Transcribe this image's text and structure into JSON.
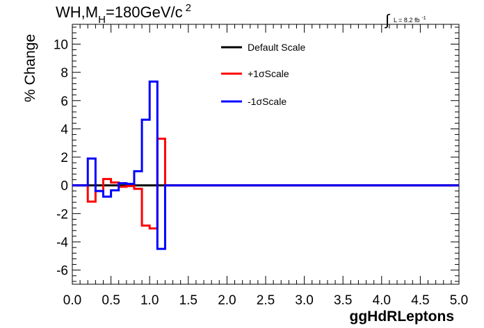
{
  "chart_data": {
    "type": "line",
    "title": "WH,M_H=180GeV/c^2",
    "title_parts": {
      "main": "WH,M",
      "sub": "H",
      "rest": "=180GeV/c",
      "sup": "2"
    },
    "lumi_label": {
      "integral": "∫",
      "text": "L = 8.2 fb",
      "sup": "-1"
    },
    "xlabel": "ggHdRLeptons",
    "ylabel": "% Change",
    "xlim": [
      0.0,
      5.0
    ],
    "ylim": [
      -7.0,
      11.4
    ],
    "x_ticks": [
      0.0,
      0.5,
      1.0,
      1.5,
      2.0,
      2.5,
      3.0,
      3.5,
      4.0,
      4.5,
      5.0
    ],
    "x_tick_labels": [
      "0.0",
      "0.5",
      "1.0",
      "1.5",
      "2.0",
      "2.5",
      "3.0",
      "3.5",
      "4.0",
      "4.5",
      "5.0"
    ],
    "y_ticks": [
      -6,
      -4,
      -2,
      0,
      2,
      4,
      6,
      8,
      10
    ],
    "y_tick_labels": [
      "-6",
      "-4",
      "-2",
      "0",
      "2",
      "4",
      "6",
      "8",
      "10"
    ],
    "grid": false,
    "legend_position": "top-center",
    "bin_edges": [
      0.0,
      0.1,
      0.2,
      0.3,
      0.4,
      0.5,
      0.6,
      0.7,
      0.8,
      0.9,
      1.0,
      1.1,
      1.2,
      1.3,
      1.4,
      1.5,
      1.6,
      1.7,
      1.8,
      1.9,
      2.0,
      2.1,
      2.2,
      2.3,
      2.4,
      2.5,
      2.6,
      2.7,
      2.8,
      2.9,
      3.0,
      3.1,
      3.2,
      3.3,
      3.4,
      3.5,
      3.6,
      3.7,
      3.8,
      3.9,
      4.0,
      4.1,
      4.2,
      4.3,
      4.4,
      4.5,
      4.6,
      4.7,
      4.8,
      4.9,
      5.0
    ],
    "series": [
      {
        "name": "Default Scale",
        "color": "#000000",
        "values": [
          0,
          0,
          0,
          0,
          0,
          0,
          0,
          0,
          0,
          0,
          0,
          0,
          0,
          0,
          0,
          0,
          0,
          0,
          0,
          0,
          0,
          0,
          0,
          0,
          0,
          0,
          0,
          0,
          0,
          0,
          0,
          0,
          0,
          0,
          0,
          0,
          0,
          0,
          0,
          0,
          0,
          0,
          0,
          0,
          0,
          0,
          0,
          0,
          0,
          0
        ]
      },
      {
        "name": "+1σScale",
        "color": "#ff0000",
        "values": [
          0,
          0,
          -1.15,
          -0.4,
          0.45,
          0.2,
          -0.1,
          -0.05,
          -0.25,
          -2.85,
          -3.05,
          3.3,
          0,
          0,
          0,
          0,
          0,
          0,
          0,
          0,
          0,
          0,
          0,
          0,
          0,
          0,
          0,
          0,
          0,
          0,
          0,
          0,
          0,
          0,
          0,
          0,
          0,
          0,
          0,
          0,
          0,
          0,
          0,
          0,
          0,
          0,
          0,
          0,
          0,
          0
        ]
      },
      {
        "name": "-1σScale",
        "color": "#0000ff",
        "values": [
          0,
          0,
          1.9,
          -0.4,
          -0.8,
          -0.35,
          0.15,
          0.1,
          1.0,
          4.65,
          7.35,
          -4.5,
          0,
          0,
          0,
          0,
          0,
          0,
          0,
          0,
          0,
          0,
          0,
          0,
          0,
          0,
          0,
          0,
          0,
          0,
          0,
          0,
          0,
          0,
          0,
          0,
          0,
          0,
          0,
          0,
          0,
          0,
          0,
          0,
          0,
          0,
          0,
          0,
          0,
          0
        ]
      }
    ]
  }
}
